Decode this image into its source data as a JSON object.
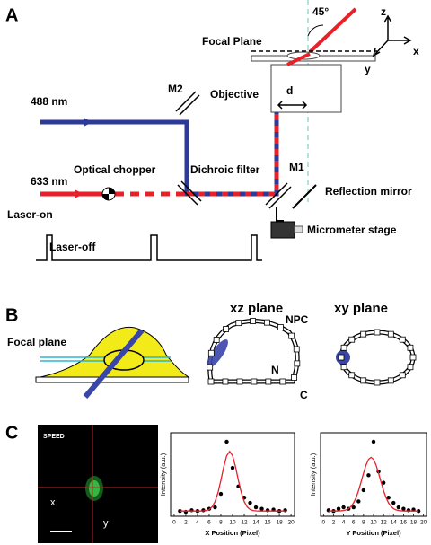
{
  "panels": {
    "A": {
      "label": "A",
      "angle": "45°",
      "focal_plane": "Focal Plane",
      "axis_z": "z",
      "axis_x": "x",
      "axis_y": "y",
      "objective": "Objective",
      "d": "d",
      "laser_488": "488 nm",
      "m2": "M2",
      "laser_633": "633 nm",
      "optical_chopper": "Optical chopper",
      "dichroic_filter": "Dichroic filter",
      "m1": "M1",
      "reflection_mirror": "Reflection mirror",
      "micrometer_stage": "Micrometer stage",
      "laser_on": "Laser-on",
      "laser_off": "Laser-off"
    },
    "B": {
      "label": "B",
      "focal_plane": "Focal plane",
      "xz_plane": "xz plane",
      "xy_plane": "xy plane",
      "npc": "NPC",
      "n": "N",
      "c": "C"
    },
    "C": {
      "label": "C",
      "speed": "SPEED",
      "x": "x",
      "y": "y"
    }
  },
  "chart_data": [
    {
      "type": "scatter",
      "xlabel": "X Position (Pixel)",
      "ylabel": "Intensity (a.u.)",
      "xlim": [
        -0.6,
        20.6
      ],
      "ylim": [
        0,
        1.12
      ],
      "xticks": [
        0,
        2,
        4,
        6,
        8,
        10,
        12,
        14,
        16,
        18,
        20
      ],
      "series": [
        {
          "mode": "markers",
          "color": "#000000",
          "x": [
            1,
            2,
            3,
            4,
            5,
            6,
            7,
            8,
            9,
            10,
            11,
            12,
            13,
            14,
            15,
            16,
            17,
            18,
            19
          ],
          "values": [
            0.07,
            0.06,
            0.08,
            0.07,
            0.08,
            0.1,
            0.12,
            0.3,
            1.0,
            0.65,
            0.4,
            0.25,
            0.18,
            0.12,
            0.1,
            0.08,
            0.09,
            0.07,
            0.08
          ]
        },
        {
          "mode": "line",
          "color": "#e8202a",
          "x": [
            1,
            1.5,
            2,
            2.5,
            3,
            3.5,
            4,
            4.5,
            5,
            5.5,
            6,
            6.5,
            7,
            7.5,
            8,
            8.5,
            9,
            9.5,
            10,
            10.5,
            11,
            11.5,
            12,
            12.5,
            13,
            13.5,
            14,
            14.5,
            15,
            15.5,
            16,
            16.5,
            17,
            17.5,
            18,
            18.5,
            19
          ],
          "values": [
            0.07,
            0.07,
            0.07,
            0.07,
            0.07,
            0.07,
            0.07,
            0.07,
            0.072,
            0.077,
            0.091,
            0.126,
            0.196,
            0.315,
            0.481,
            0.665,
            0.813,
            0.87,
            0.813,
            0.665,
            0.481,
            0.315,
            0.196,
            0.126,
            0.091,
            0.077,
            0.072,
            0.07,
            0.07,
            0.07,
            0.07,
            0.07,
            0.07,
            0.07,
            0.07,
            0.07,
            0.07
          ]
        }
      ]
    },
    {
      "type": "scatter",
      "xlabel": "Y Position (Pixel)",
      "ylabel": "Intensity (a.u.)",
      "xlim": [
        -0.6,
        20.6
      ],
      "ylim": [
        0,
        1.12
      ],
      "xticks": [
        0,
        2,
        4,
        6,
        8,
        10,
        12,
        14,
        16,
        18,
        20
      ],
      "series": [
        {
          "mode": "markers",
          "color": "#000000",
          "x": [
            1,
            2,
            3,
            4,
            5,
            6,
            7,
            8,
            9,
            10,
            11,
            12,
            13,
            14,
            15,
            16,
            17,
            18,
            19
          ],
          "values": [
            0.08,
            0.07,
            0.1,
            0.12,
            0.1,
            0.12,
            0.2,
            0.35,
            0.55,
            1.0,
            0.6,
            0.45,
            0.25,
            0.18,
            0.12,
            0.1,
            0.08,
            0.09,
            0.07
          ]
        },
        {
          "mode": "line",
          "color": "#e8202a",
          "x": [
            1,
            1.5,
            2,
            2.5,
            3,
            3.5,
            4,
            4.5,
            5,
            5.5,
            6,
            6.5,
            7,
            7.5,
            8,
            8.5,
            9,
            9.5,
            10,
            10.5,
            11,
            11.5,
            12,
            12.5,
            13,
            13.5,
            14,
            14.5,
            15,
            15.5,
            16,
            16.5,
            17,
            17.5,
            18,
            18.5,
            19
          ],
          "values": [
            0.07,
            0.07,
            0.07,
            0.07,
            0.071,
            0.073,
            0.077,
            0.085,
            0.102,
            0.131,
            0.179,
            0.249,
            0.344,
            0.458,
            0.579,
            0.687,
            0.763,
            0.79,
            0.763,
            0.687,
            0.579,
            0.458,
            0.344,
            0.249,
            0.179,
            0.131,
            0.102,
            0.085,
            0.077,
            0.073,
            0.071,
            0.07,
            0.07,
            0.07,
            0.07,
            0.07,
            0.07
          ]
        }
      ]
    }
  ]
}
